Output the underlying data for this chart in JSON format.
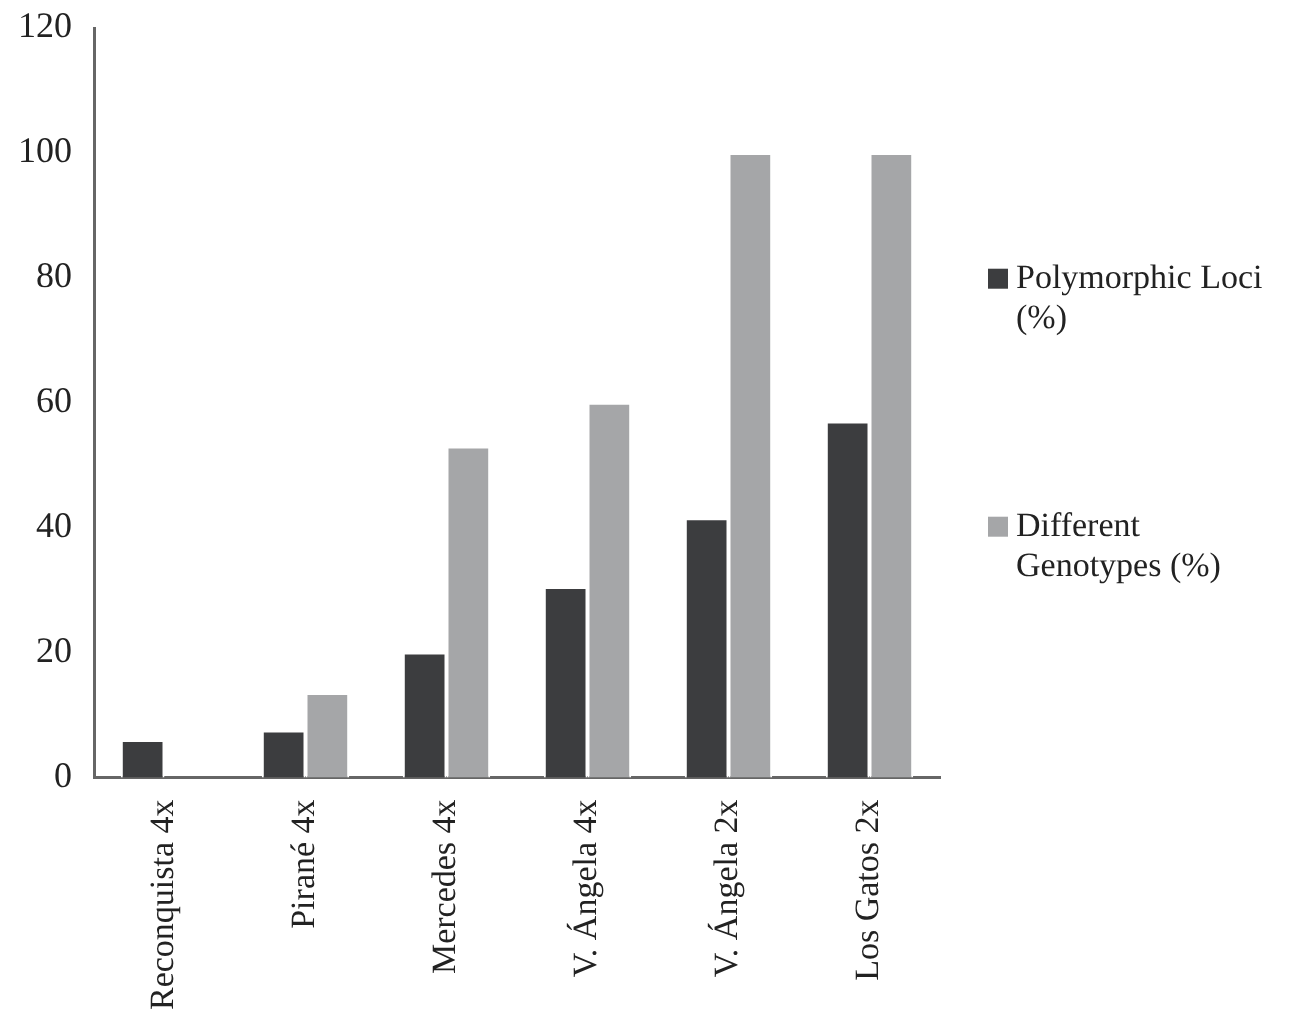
{
  "chart_data": {
    "type": "bar",
    "categories": [
      "Reconquista 4x",
      "Pirané 4x",
      "Mercedes 4x",
      "V. Ángela 4x",
      "V. Ángela 2x",
      "Los Gatos 2x"
    ],
    "series": [
      {
        "name": "Polymorphic Loci (%)",
        "color": "#3c3d3f",
        "values": [
          6,
          7.5,
          20,
          30.5,
          41.5,
          57
        ]
      },
      {
        "name": "Different Genotypes (%)",
        "color": "#a5a6a8",
        "values": [
          0,
          13.5,
          53,
          60,
          100,
          100
        ]
      }
    ],
    "ylim": [
      0,
      120
    ],
    "yticks": [
      0,
      20,
      40,
      60,
      80,
      100,
      120
    ],
    "grid": false,
    "legend": "right"
  }
}
